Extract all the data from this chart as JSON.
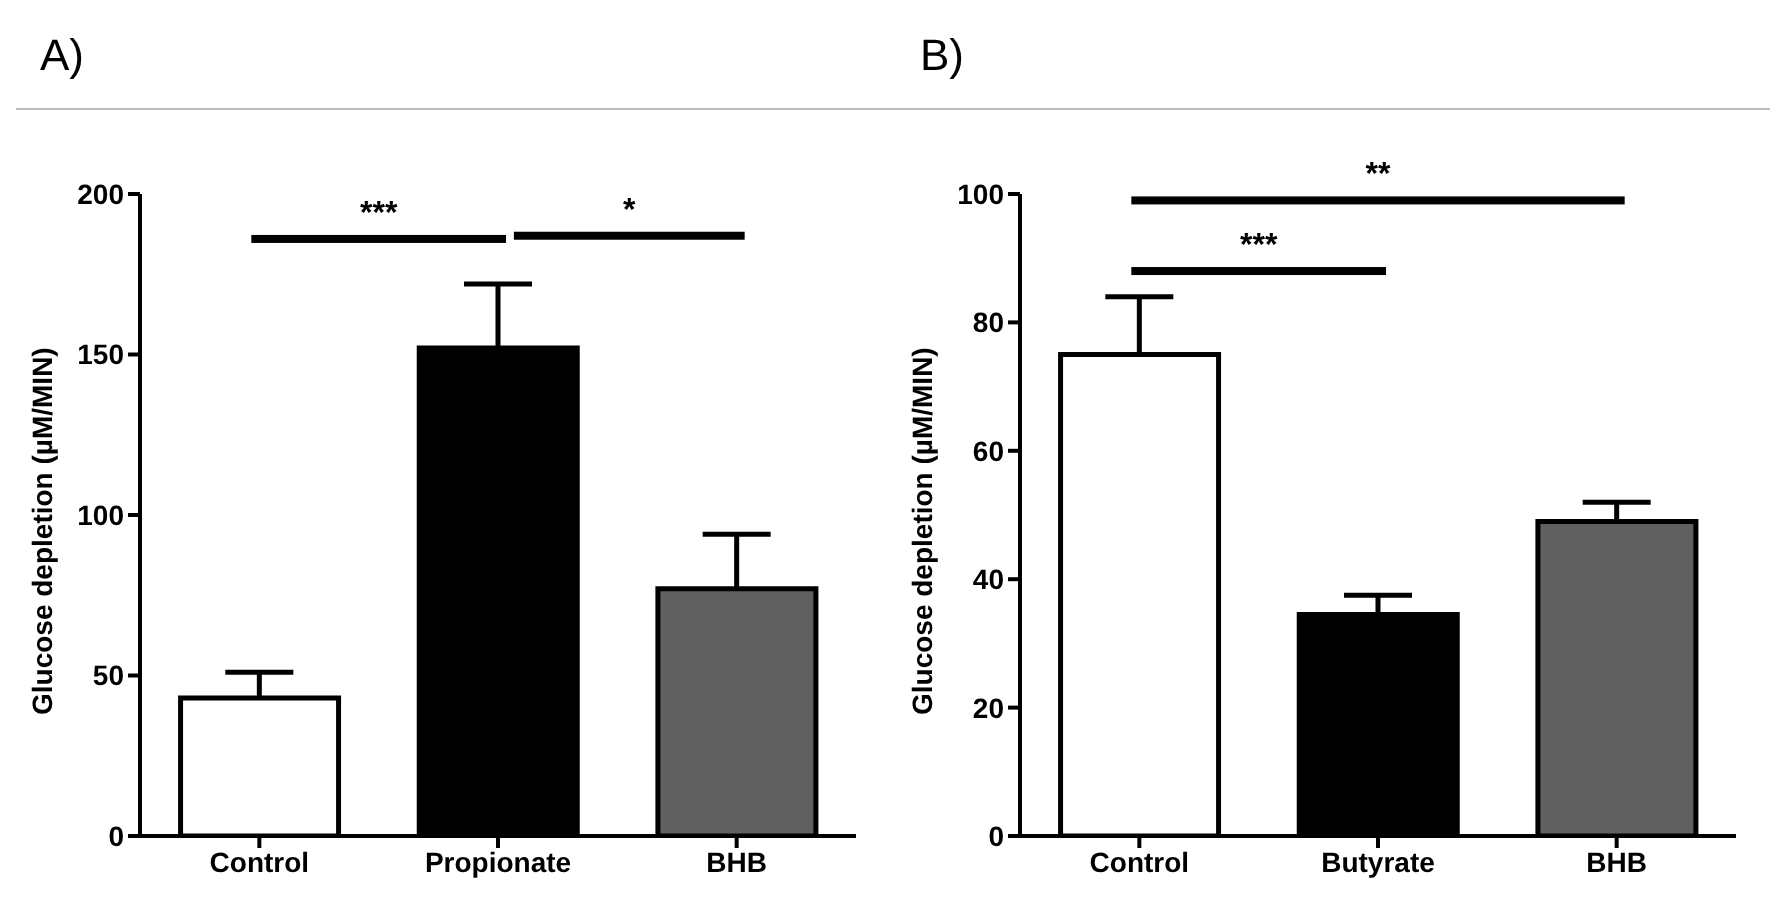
{
  "chart_data": [
    {
      "type": "bar",
      "title": "A)",
      "ylabel": "Glucose depletion (µM/MIN)",
      "categories": [
        "Control",
        "Propionate",
        "BHB"
      ],
      "values": [
        43,
        152,
        77
      ],
      "colors": [
        "#ffffff",
        "#000000",
        "#606060"
      ],
      "errors": [
        [
          43,
          51
        ],
        [
          152,
          172
        ],
        [
          77,
          94
        ]
      ],
      "ylim": [
        0,
        200
      ],
      "yticks": [
        0,
        50,
        100,
        150,
        200
      ],
      "grid": false,
      "legend": false,
      "annotations": [
        "***",
        "*"
      ]
    },
    {
      "type": "bar",
      "title": "B)",
      "ylabel": "Glucose depletion (µM/MIN)",
      "categories": [
        "Control",
        "Butyrate",
        "BHB"
      ],
      "values": [
        75,
        34.5,
        49
      ],
      "colors": [
        "#ffffff",
        "#000000",
        "#606060"
      ],
      "errors": [
        [
          75,
          84
        ],
        [
          34.5,
          37.5
        ],
        [
          49,
          52
        ]
      ],
      "ylim": [
        0,
        100
      ],
      "yticks": [
        0,
        20,
        40,
        60,
        80,
        100
      ],
      "grid": false,
      "legend": false,
      "annotations": [
        "***",
        "**"
      ]
    }
  ]
}
